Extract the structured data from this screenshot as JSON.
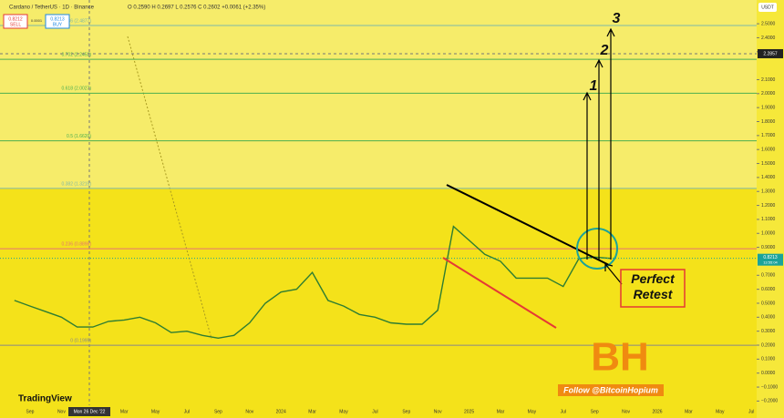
{
  "header": {
    "symbol": "Cardano / TetherUS · 1D · Binance",
    "ohlc": "O 0.2590 H 0.2697 L 0.2576 C 0.2602 +0.0061 (+2.35%)",
    "sell_price": "0.8212",
    "sell": "SELL",
    "spread": "0.0001",
    "buy_price": "0.8213",
    "buy": "BUY",
    "currency": "USDT"
  },
  "chart_data": {
    "type": "line",
    "color": "#2e7d32",
    "categories": [
      null,
      "Sep",
      null,
      "Nov",
      null,
      null,
      null,
      "Mar",
      null,
      "May",
      null,
      "Jul",
      null,
      "Sep",
      null,
      "Nov",
      null,
      "2024",
      null,
      "Mar",
      null,
      "May",
      null,
      "Jul",
      null,
      "Sep",
      null,
      "Nov",
      null,
      "2025",
      null,
      "Mar",
      null,
      "May",
      null,
      "Jul",
      null,
      "Sep",
      null,
      "Nov",
      null,
      "2026",
      null,
      "Mar",
      null,
      "May",
      null,
      "Jul"
    ],
    "values": [
      0.52,
      0.48,
      0.44,
      0.4,
      0.33,
      0.33,
      0.37,
      0.38,
      0.4,
      0.36,
      0.29,
      0.3,
      0.27,
      0.25,
      0.27,
      0.36,
      0.5,
      0.58,
      0.6,
      0.72,
      0.52,
      0.48,
      0.42,
      0.4,
      0.36,
      0.35,
      0.35,
      0.45,
      1.05,
      0.95,
      0.85,
      0.8,
      0.68,
      0.68,
      0.68,
      0.62,
      0.82,
      0.83,
      0.8213,
      null,
      null,
      null,
      null,
      null,
      null,
      null,
      null,
      null
    ],
    "ylim": [
      -0.23,
      2.67
    ],
    "yticks": [
      {
        "value": 2.5,
        "label": "2.5000"
      },
      {
        "value": 2.4,
        "label": "2.4000"
      },
      {
        "value": 2.3,
        "label": "2.3000"
      },
      {
        "value": 2.1,
        "label": "2.1000"
      },
      {
        "value": 2.0,
        "label": "2.0000"
      },
      {
        "value": 1.9,
        "label": "1.9000"
      },
      {
        "value": 1.8,
        "label": "1.8000"
      },
      {
        "value": 1.7,
        "label": "1.7000"
      },
      {
        "value": 1.6,
        "label": "1.6000"
      },
      {
        "value": 1.5,
        "label": "1.5000"
      },
      {
        "value": 1.4,
        "label": "1.4000"
      },
      {
        "value": 1.3,
        "label": "1.3000"
      },
      {
        "value": 1.2,
        "label": "1.2000"
      },
      {
        "value": 1.1,
        "label": "1.1000"
      },
      {
        "value": 1.0,
        "label": "1.0000"
      },
      {
        "value": 0.9,
        "label": "0.9000"
      },
      {
        "value": 0.7,
        "label": "0.7000"
      },
      {
        "value": 0.6,
        "label": "0.6000"
      },
      {
        "value": 0.5,
        "label": "0.5000"
      },
      {
        "value": 0.4,
        "label": "0.4000"
      },
      {
        "value": 0.3,
        "label": "0.3000"
      },
      {
        "value": 0.2,
        "label": "0.2000"
      },
      {
        "value": 0.1,
        "label": "0.1000"
      },
      {
        "value": 0,
        "label": "0.0000"
      },
      {
        "value": -0.1,
        "label": "−0.1000"
      },
      {
        "value": -0.2,
        "label": "−0.2000"
      }
    ],
    "fib_levels": [
      {
        "label": "0.786 (2.4877)",
        "value": 2.4877,
        "color": "#7fb8a8"
      },
      {
        "label": "0.702 (2.2452)",
        "value": 2.2452,
        "color": "#4caf50"
      },
      {
        "label": "0.618 (2.0027)",
        "value": 2.0027,
        "color": "#4caf50"
      },
      {
        "label": "0.5 (1.6620)",
        "value": 1.662,
        "color": "#4caf50"
      },
      {
        "label": "0.382 (1.3215)",
        "value": 1.3215,
        "color": "#7fb8a8"
      },
      {
        "label": "0.236 (0.8898)",
        "value": 0.8898,
        "color": "#e57373"
      },
      {
        "label": "0 (0.1995)",
        "value": 0.1995,
        "color": "#888888"
      }
    ],
    "last_price": {
      "value": 0.8213,
      "label": "0.8213",
      "countdown": "13:55:04"
    },
    "crosshair": {
      "date": "Mon 26 Dec '22",
      "value": 2.2857,
      "label": "2.2857"
    },
    "annotations": [
      "1",
      "2",
      "3",
      "Perfect Retest"
    ]
  },
  "branding": {
    "logo": "TradingView",
    "follow": "Follow @BitcoinHopium",
    "mark": "BH"
  }
}
